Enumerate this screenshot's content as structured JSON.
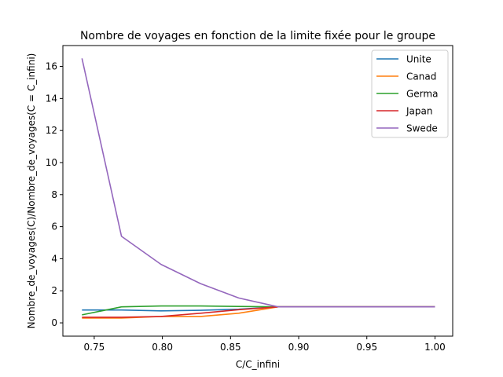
{
  "chart_data": {
    "type": "line",
    "title": "Nombre de voyages en fonction de la limite fixée pour le groupe",
    "xlabel": "C/C_infini",
    "ylabel": "Nombre_de_voyages(C)/Nombre_de_voyages(C = C_infini)",
    "xlim": [
      0.727,
      1.013
    ],
    "ylim": [
      -0.83,
      17.3
    ],
    "xticks": [
      "0.75",
      "0.80",
      "0.85",
      "0.90",
      "0.95",
      "1.00"
    ],
    "xtick_values": [
      0.75,
      0.8,
      0.85,
      0.9,
      0.95,
      1.0
    ],
    "yticks": [
      "0",
      "2",
      "4",
      "6",
      "8",
      "10",
      "12",
      "14",
      "16"
    ],
    "ytick_values": [
      0,
      2,
      4,
      6,
      8,
      10,
      12,
      14,
      16
    ],
    "grid": false,
    "legend_position": "top-right",
    "x": [
      0.741,
      0.77,
      0.799,
      0.828,
      0.856,
      0.885,
      0.914,
      0.943,
      0.971,
      1.0
    ],
    "series": [
      {
        "name": "Unite",
        "color": "#1f77b4",
        "values": [
          0.8,
          0.8,
          0.75,
          0.78,
          0.85,
          1.0,
          1.0,
          1.0,
          1.0,
          1.0
        ]
      },
      {
        "name": "Canad",
        "color": "#ff7f0e",
        "values": [
          0.3,
          0.3,
          0.4,
          0.4,
          0.6,
          1.0,
          1.0,
          1.0,
          1.0,
          1.0
        ]
      },
      {
        "name": "Germa",
        "color": "#2ca02c",
        "values": [
          0.5,
          1.0,
          1.05,
          1.05,
          1.02,
          1.0,
          1.0,
          1.0,
          1.0,
          1.0
        ]
      },
      {
        "name": "Japan",
        "color": "#d62728",
        "values": [
          0.35,
          0.35,
          0.4,
          0.6,
          0.82,
          1.0,
          1.0,
          1.0,
          1.0,
          1.0
        ]
      },
      {
        "name": "Swede",
        "color": "#9467bd",
        "values": [
          16.5,
          5.4,
          3.65,
          2.45,
          1.55,
          1.0,
          1.0,
          1.0,
          1.0,
          1.0
        ]
      }
    ]
  }
}
